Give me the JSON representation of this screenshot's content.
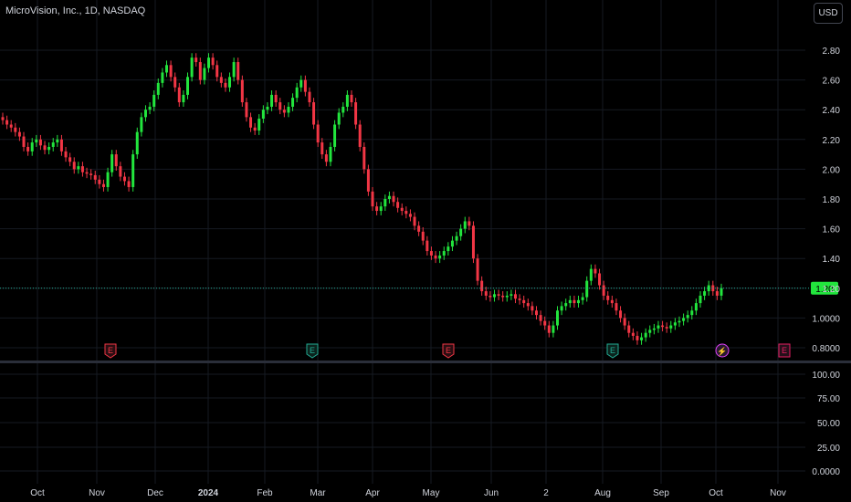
{
  "header": {
    "symbol_title": "MicroVision, Inc., 1D, NASDAQ",
    "currency_button": "USD"
  },
  "colors": {
    "up": "#22e53d",
    "down": "#f23645",
    "background": "#000000",
    "grid": "#161a22",
    "axis_text": "#d1d4dc",
    "price_line": "#22ab94",
    "current_price_label_bg": "#22e53d"
  },
  "chart_data": {
    "type": "candlestick",
    "title": "MicroVision, Inc., 1D, NASDAQ",
    "y_axis_ticks": [
      "2.80",
      "2.60",
      "2.40",
      "2.20",
      "2.00",
      "1.80",
      "1.60",
      "1.40",
      "1.20",
      "1.0000",
      "0.8000"
    ],
    "ylim": [
      0.76,
      2.96
    ],
    "current_price": 1.2,
    "current_price_label": "1.20",
    "x_axis_labels": [
      "Oct",
      "Nov",
      "Dec",
      "2024",
      "Feb",
      "Mar",
      "Apr",
      "May",
      "Jun",
      "2",
      "Aug",
      "Sep",
      "Oct",
      "Nov"
    ],
    "x_axis_bold": "2024",
    "series_close_trace": [
      2.33,
      2.3,
      2.28,
      2.25,
      2.22,
      2.15,
      2.12,
      2.18,
      2.2,
      2.16,
      2.13,
      2.15,
      2.18,
      2.2,
      2.12,
      2.08,
      2.05,
      2.0,
      2.02,
      1.98,
      1.97,
      1.96,
      1.93,
      1.9,
      1.88,
      1.98,
      2.1,
      2.02,
      1.95,
      1.92,
      1.88,
      2.1,
      2.25,
      2.35,
      2.4,
      2.42,
      2.5,
      2.58,
      2.65,
      2.7,
      2.62,
      2.55,
      2.45,
      2.5,
      2.62,
      2.75,
      2.72,
      2.6,
      2.68,
      2.75,
      2.7,
      2.62,
      2.58,
      2.55,
      2.62,
      2.72,
      2.6,
      2.45,
      2.35,
      2.28,
      2.26,
      2.34,
      2.4,
      2.42,
      2.5,
      2.45,
      2.4,
      2.38,
      2.42,
      2.48,
      2.55,
      2.6,
      2.52,
      2.45,
      2.3,
      2.18,
      2.1,
      2.05,
      2.15,
      2.3,
      2.38,
      2.42,
      2.5,
      2.45,
      2.3,
      2.15,
      2.0,
      1.85,
      1.75,
      1.72,
      1.75,
      1.8,
      1.82,
      1.78,
      1.74,
      1.72,
      1.7,
      1.68,
      1.62,
      1.58,
      1.52,
      1.45,
      1.42,
      1.4,
      1.42,
      1.45,
      1.48,
      1.52,
      1.55,
      1.6,
      1.65,
      1.62,
      1.4,
      1.25,
      1.18,
      1.15,
      1.14,
      1.16,
      1.15,
      1.14,
      1.15,
      1.16,
      1.13,
      1.12,
      1.1,
      1.08,
      1.05,
      1.02,
      0.98,
      0.95,
      0.9,
      0.95,
      1.05,
      1.08,
      1.1,
      1.12,
      1.1,
      1.12,
      1.14,
      1.25,
      1.33,
      1.3,
      1.22,
      1.15,
      1.12,
      1.1,
      1.05,
      1.0,
      0.95,
      0.9,
      0.88,
      0.85,
      0.87,
      0.9,
      0.92,
      0.93,
      0.95,
      0.94,
      0.93,
      0.95,
      0.97,
      0.98,
      1.0,
      1.02,
      1.05,
      1.1,
      1.15,
      1.18,
      1.22,
      1.18,
      1.15,
      1.2
    ],
    "earnings_markers": [
      {
        "label": "E",
        "x_index": 33,
        "kind": "past-miss"
      },
      {
        "label": "E",
        "x_index": 91,
        "kind": "past-beat"
      },
      {
        "label": "E",
        "x_index": 133,
        "kind": "past-miss"
      },
      {
        "label": "E",
        "x_index": 183,
        "kind": "past-beat"
      },
      {
        "label": "⚡",
        "x_index": 224,
        "kind": "split-dividend"
      },
      {
        "label": "E",
        "x_index": 242,
        "kind": "upcoming"
      }
    ],
    "lower_pane": {
      "y_axis_ticks": [
        "100.00",
        "75.00",
        "50.00",
        "25.00",
        "0.0000"
      ]
    }
  }
}
